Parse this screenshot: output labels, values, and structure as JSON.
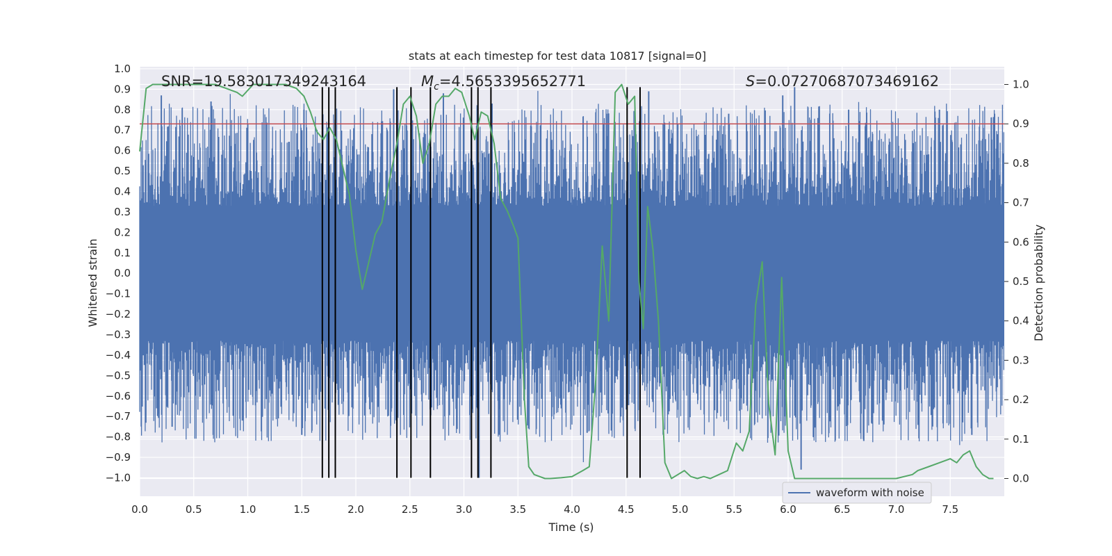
{
  "chart_data": {
    "type": "line",
    "title": "stats at each timestep for test data 10817 [signal=0]",
    "xlabel": "Time (s)",
    "ylabel": "Whitened strain",
    "y2label": "Detection probability",
    "xlim": [
      0.0,
      8.0
    ],
    "ylim": [
      -1.09,
      1.01
    ],
    "y2lim": [
      -0.045,
      1.045
    ],
    "x_ticks": [
      0.0,
      0.5,
      1.0,
      1.5,
      2.0,
      2.5,
      3.0,
      3.5,
      4.0,
      4.5,
      5.0,
      5.5,
      6.0,
      6.5,
      7.0,
      7.5
    ],
    "x_tick_labels": [
      "0.0",
      "0.5",
      "1.0",
      "1.5",
      "2.0",
      "2.5",
      "3.0",
      "3.5",
      "4.0",
      "4.5",
      "5.0",
      "5.5",
      "6.0",
      "6.5",
      "7.0",
      "7.5"
    ],
    "y_ticks": [
      1.0,
      0.9,
      0.8,
      0.7,
      0.6,
      0.5,
      0.4,
      0.3,
      0.2,
      0.1,
      0.0,
      -0.1,
      -0.2,
      -0.3,
      -0.4,
      -0.5,
      -0.6,
      -0.7,
      -0.8,
      -0.9,
      -1.0
    ],
    "y_tick_labels": [
      "1.0",
      "0.9",
      "0.8",
      "0.7",
      "0.6",
      "0.5",
      "0.4",
      "0.3",
      "0.2",
      "0.1",
      "0.0",
      "−0.1",
      "−0.2",
      "−0.3",
      "−0.4",
      "−0.5",
      "−0.6",
      "−0.7",
      "−0.8",
      "−0.9",
      "−1.0"
    ],
    "y2_ticks": [
      1.0,
      0.9,
      0.8,
      0.7,
      0.6,
      0.5,
      0.4,
      0.3,
      0.2,
      0.1,
      0.0
    ],
    "y2_tick_labels": [
      "1.0",
      "0.9",
      "0.8",
      "0.7",
      "0.6",
      "0.5",
      "0.4",
      "0.3",
      "0.2",
      "0.1",
      "0.0"
    ],
    "grid": true,
    "legend": {
      "entries": [
        "waveform with noise"
      ],
      "position": "lower-center-right"
    },
    "annotations": {
      "snr": "SNR=19.583017349243164",
      "mc_symbol": "M",
      "mc_sub": "c",
      "mc_value": "=4.5653395652771",
      "s_symbol": "S",
      "s_value": "=0.07270687073469162"
    },
    "threshold": {
      "value": 0.9,
      "axis": "y2",
      "color": "#c44e52"
    },
    "vlines": [
      1.69,
      1.75,
      1.81,
      2.38,
      2.51,
      2.69,
      3.07,
      3.13,
      3.25,
      4.51,
      4.63
    ],
    "vline_range": [
      -1.0,
      0.91
    ],
    "waveform": {
      "name": "waveform with noise",
      "color": "#4c72b0",
      "core_amplitude": 0.33,
      "envelope": 0.5,
      "spikes": [
        [
          0.2,
          0.87
        ],
        [
          0.66,
          0.84
        ],
        [
          1.52,
          0.8
        ],
        [
          2.35,
          0.9
        ],
        [
          2.81,
          0.88
        ],
        [
          3.26,
          0.83
        ],
        [
          4.32,
          0.78
        ],
        [
          4.71,
          0.89
        ],
        [
          5.45,
          0.78
        ],
        [
          5.95,
          0.87
        ],
        [
          6.06,
          0.91
        ],
        [
          6.56,
          0.8
        ],
        [
          7.4,
          0.8
        ],
        [
          7.91,
          0.78
        ],
        [
          0.3,
          -0.75
        ],
        [
          0.95,
          -0.72
        ],
        [
          1.5,
          -0.79
        ],
        [
          3.14,
          -1.0
        ],
        [
          4.14,
          -0.78
        ],
        [
          6.12,
          -0.96
        ],
        [
          6.7,
          -0.82
        ],
        [
          7.7,
          -0.79
        ]
      ]
    },
    "probability": {
      "color": "#55a868",
      "x": [
        0.0,
        0.06,
        0.12,
        0.18,
        0.3,
        0.5,
        0.7,
        0.8,
        0.9,
        0.95,
        1.05,
        1.1,
        1.2,
        1.35,
        1.45,
        1.52,
        1.58,
        1.64,
        1.7,
        1.76,
        1.82,
        1.88,
        1.94,
        2.0,
        2.06,
        2.12,
        2.18,
        2.24,
        2.32,
        2.38,
        2.44,
        2.5,
        2.56,
        2.62,
        2.68,
        2.74,
        2.8,
        2.86,
        2.92,
        2.98,
        3.05,
        3.1,
        3.16,
        3.22,
        3.28,
        3.34,
        3.4,
        3.46,
        3.5,
        3.56,
        3.6,
        3.65,
        3.7,
        3.75,
        3.8,
        3.9,
        4.0,
        4.1,
        4.16,
        4.22,
        4.28,
        4.34,
        4.4,
        4.46,
        4.52,
        4.58,
        4.62,
        4.66,
        4.7,
        4.75,
        4.8,
        4.86,
        4.92,
        4.98,
        5.04,
        5.1,
        5.16,
        5.22,
        5.28,
        5.36,
        5.44,
        5.52,
        5.58,
        5.64,
        5.7,
        5.76,
        5.82,
        5.88,
        5.94,
        6.0,
        6.06,
        6.12,
        6.18,
        6.24,
        6.3,
        6.4,
        6.6,
        6.8,
        7.0,
        7.15,
        7.2,
        7.3,
        7.4,
        7.5,
        7.56,
        7.62,
        7.68,
        7.74,
        7.8,
        7.86,
        7.9
      ],
      "y": [
        0.83,
        0.99,
        1.0,
        1.0,
        1.0,
        1.0,
        1.0,
        0.99,
        0.98,
        0.97,
        1.0,
        1.0,
        1.0,
        1.0,
        0.99,
        0.97,
        0.93,
        0.88,
        0.86,
        0.89,
        0.86,
        0.79,
        0.72,
        0.58,
        0.48,
        0.55,
        0.62,
        0.65,
        0.77,
        0.85,
        0.95,
        0.97,
        0.92,
        0.8,
        0.85,
        0.95,
        0.97,
        0.97,
        0.99,
        0.98,
        0.92,
        0.86,
        0.93,
        0.92,
        0.85,
        0.71,
        0.68,
        0.64,
        0.61,
        0.2,
        0.03,
        0.01,
        0.005,
        0.0,
        0.0,
        0.002,
        0.005,
        0.02,
        0.03,
        0.25,
        0.59,
        0.4,
        0.98,
        1.0,
        0.95,
        0.97,
        0.5,
        0.38,
        0.69,
        0.58,
        0.4,
        0.04,
        0.0,
        0.01,
        0.02,
        0.005,
        0.0,
        0.005,
        0.0,
        0.01,
        0.02,
        0.09,
        0.07,
        0.12,
        0.44,
        0.55,
        0.19,
        0.06,
        0.51,
        0.07,
        0.0,
        0.0,
        0.0,
        0.0,
        0.0,
        0.0,
        0.0,
        0.0,
        0.0,
        0.01,
        0.02,
        0.03,
        0.04,
        0.05,
        0.04,
        0.06,
        0.07,
        0.03,
        0.01,
        0.0,
        0.0
      ]
    }
  }
}
